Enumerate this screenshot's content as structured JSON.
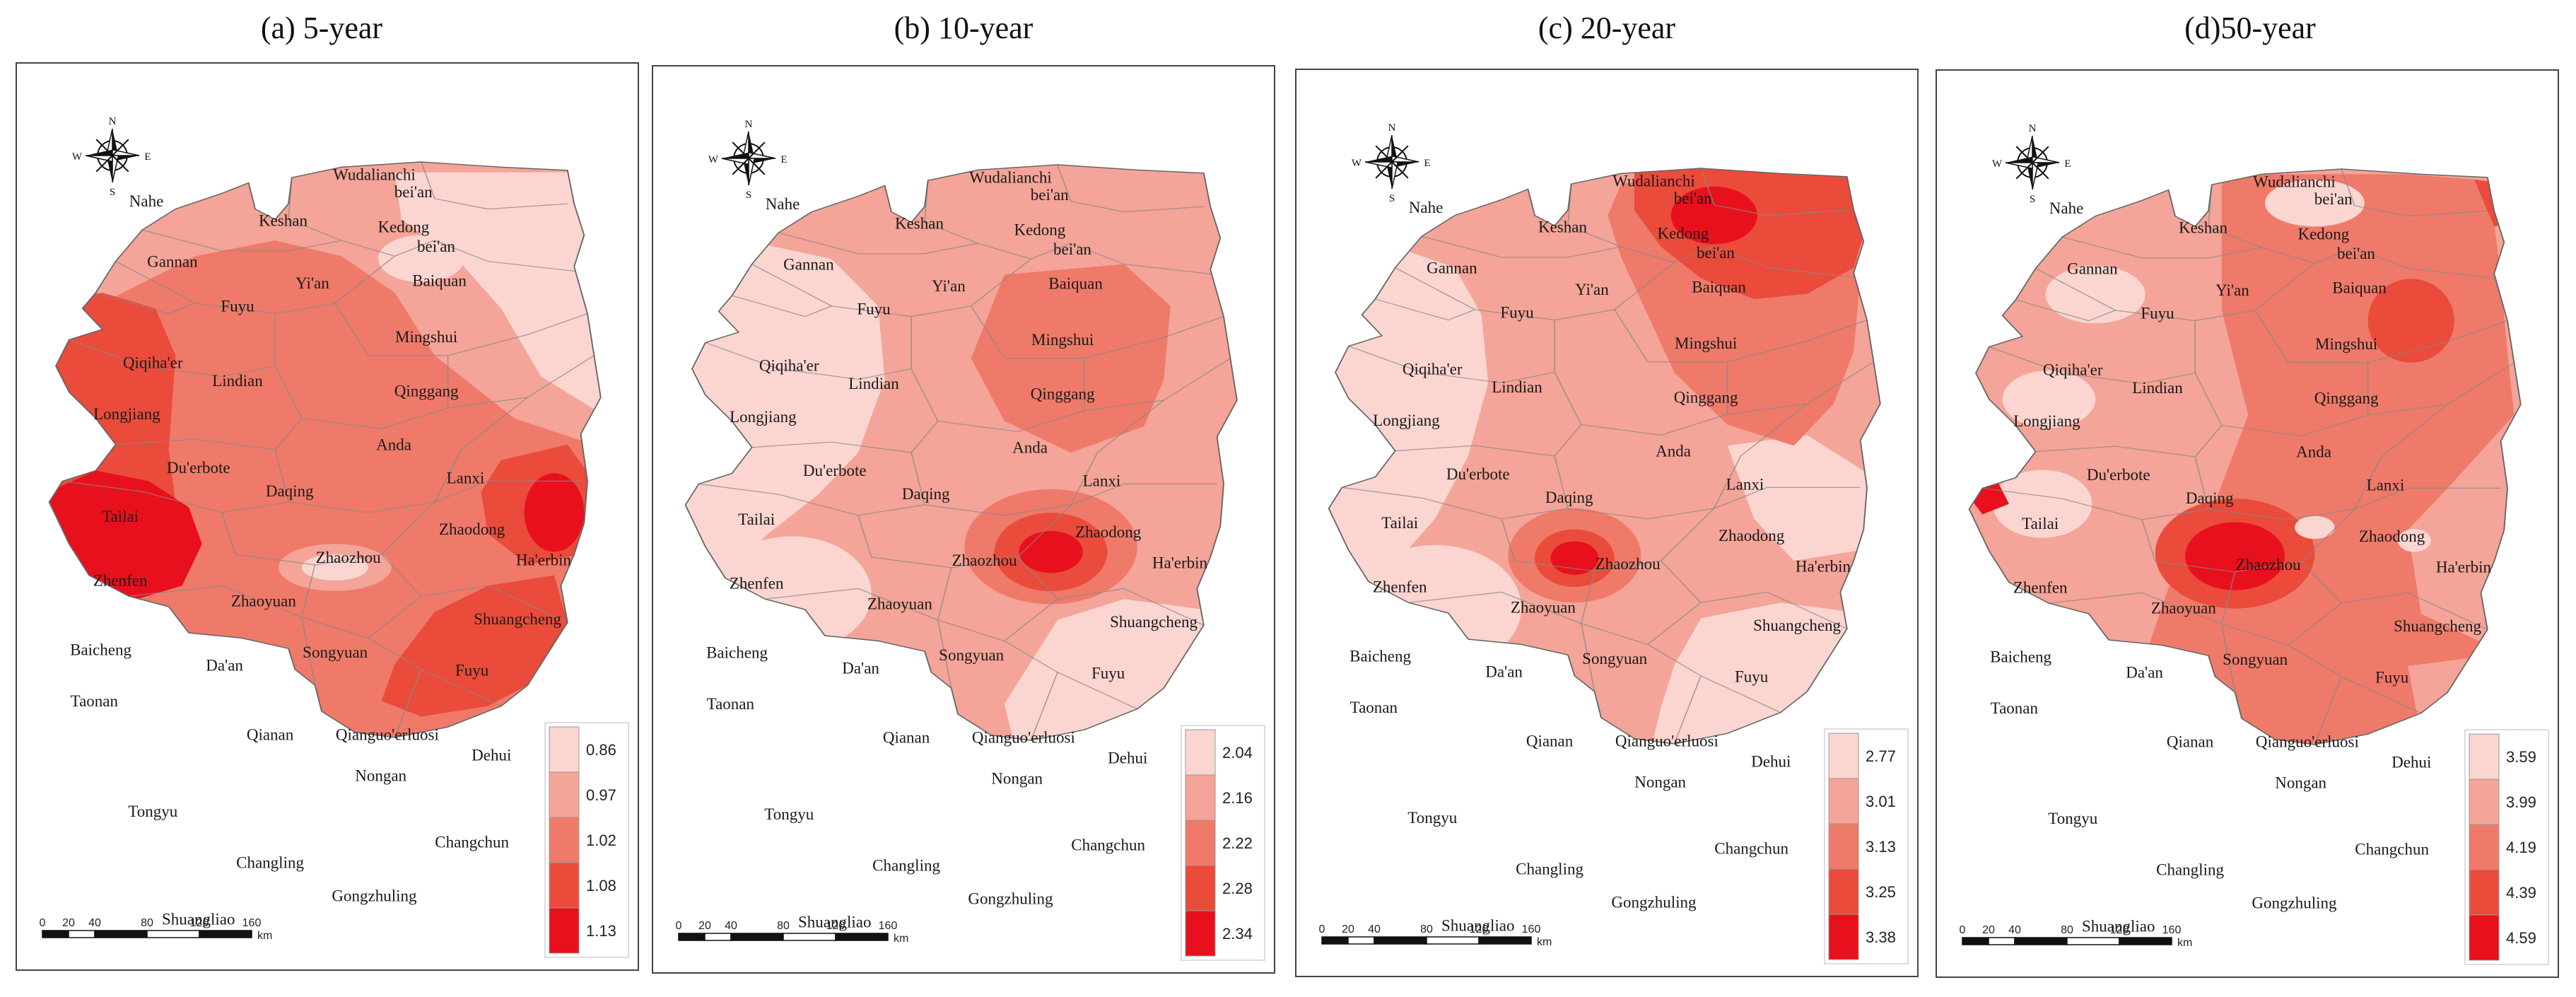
{
  "panels": [
    {
      "title": "(a) 5-year",
      "legend": [
        "0.86",
        "0.97",
        "1.02",
        "1.08",
        "1.13"
      ]
    },
    {
      "title": "(b) 10-year",
      "legend": [
        "2.04",
        "2.16",
        "2.22",
        "2.28",
        "2.34"
      ]
    },
    {
      "title": "(c) 20-year",
      "legend": [
        "2.77",
        "3.01",
        "3.13",
        "3.25",
        "3.38"
      ]
    },
    {
      "title": "(d)50-year",
      "legend": [
        "3.59",
        "3.99",
        "4.19",
        "4.39",
        "4.59"
      ]
    }
  ],
  "legend_colors": [
    "#fbd5d0",
    "#f4a498",
    "#ef7a69",
    "#ea4b3a",
    "#e8101c"
  ],
  "places": [
    "Wudalianchi",
    "bei'an",
    "Nahe",
    "Keshan",
    "Kedong",
    "bei'an",
    "Gannan",
    "Yi'an",
    "Baiquan",
    "Fuyu",
    "Mingshui",
    "Qiqiha'er",
    "Lindian",
    "Longjiang",
    "Qinggang",
    "Anda",
    "Lanxi",
    "Du'erbote",
    "Daqing",
    "Tailai",
    "Zhaodong",
    "Ha'erbin",
    "Zhaozhou",
    "Zhenfen",
    "Zhaoyuan",
    "Shuangcheng",
    "Baicheng",
    "Da'an",
    "Songyuan",
    "Fuyu",
    "Taonan",
    "Qianan",
    "Qianguo'erluosi",
    "Dehui",
    "Tongyu",
    "Nongan",
    "Changling",
    "Changchun",
    "Gongzhuling",
    "Shuangliao"
  ],
  "scale": {
    "ticks": [
      "0",
      "20",
      "40",
      "80",
      "120",
      "160"
    ],
    "unit": "km"
  },
  "compass": {
    "n": "N",
    "s": "S",
    "e": "E",
    "w": "W"
  }
}
